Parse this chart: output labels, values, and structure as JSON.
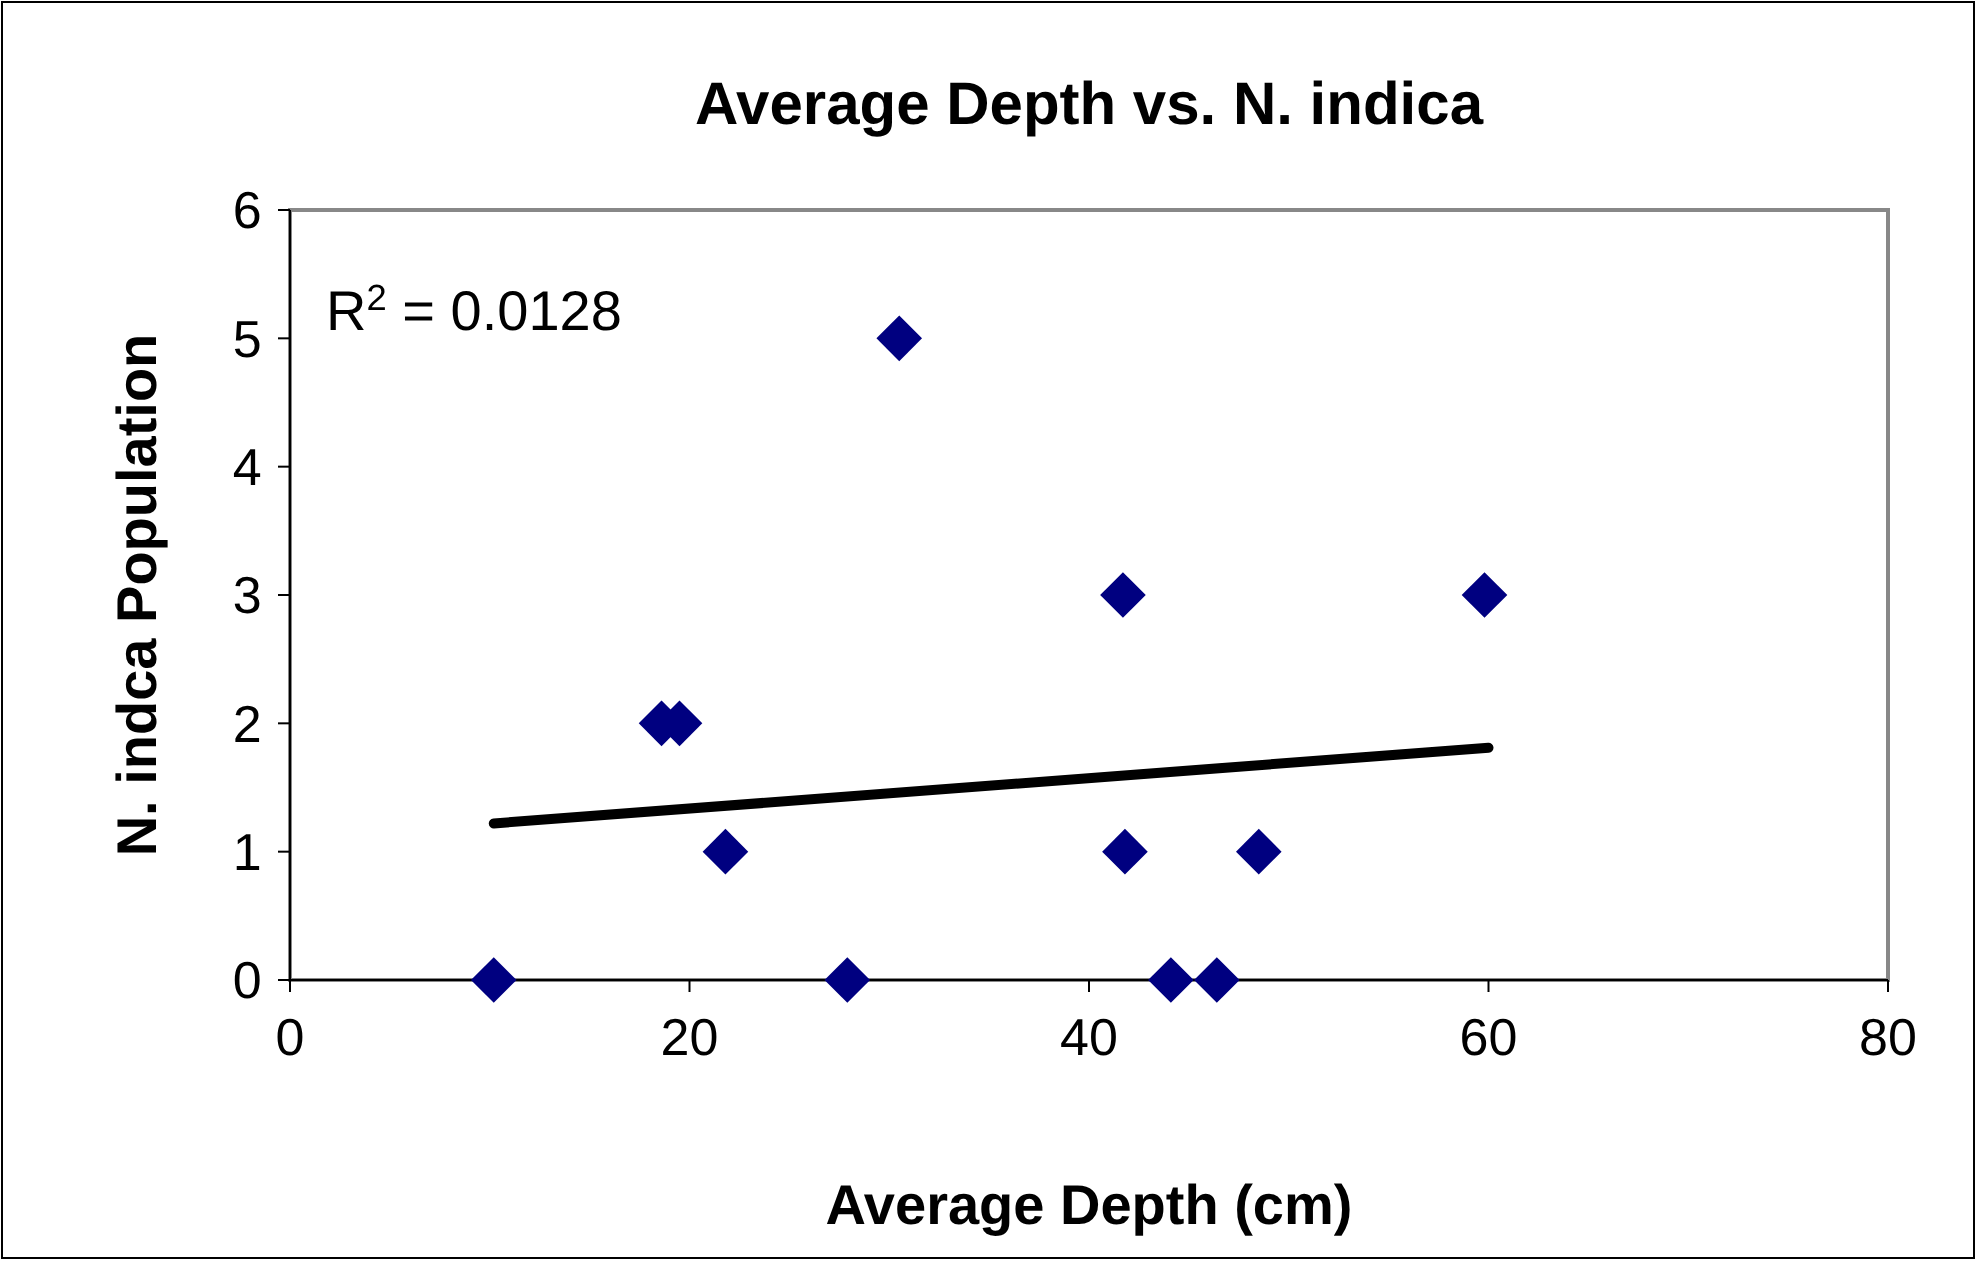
{
  "chart_data": {
    "type": "scatter",
    "title": "Average Depth vs. N. indica",
    "xlabel": "Average Depth (cm)",
    "ylabel": "N. indca Population",
    "annotations": [
      "R$^{2}$ = 0.0128"
    ],
    "xlim": [
      0,
      80
    ],
    "xticks": [
      0,
      20,
      40,
      60,
      80
    ],
    "ylim": [
      0,
      6
    ],
    "yticks": [
      0,
      1,
      2,
      3,
      4,
      5,
      6
    ],
    "grid": false,
    "marker": "diamond",
    "series": [
      {
        "color": "#000080",
        "x": [
          10.2,
          18.6,
          19.5,
          21.8,
          27.9,
          30.5,
          41.7,
          41.8,
          44.1,
          46.4,
          48.5,
          59.8
        ],
        "values": [
          0,
          2,
          2,
          1,
          0,
          5,
          3,
          1,
          0,
          0,
          1,
          3
        ]
      },
      {
        "type": "line",
        "color": "#000000",
        "marker": "none",
        "x": [
          10.2,
          60
        ],
        "values": [
          1.22,
          1.81
        ]
      }
    ]
  }
}
